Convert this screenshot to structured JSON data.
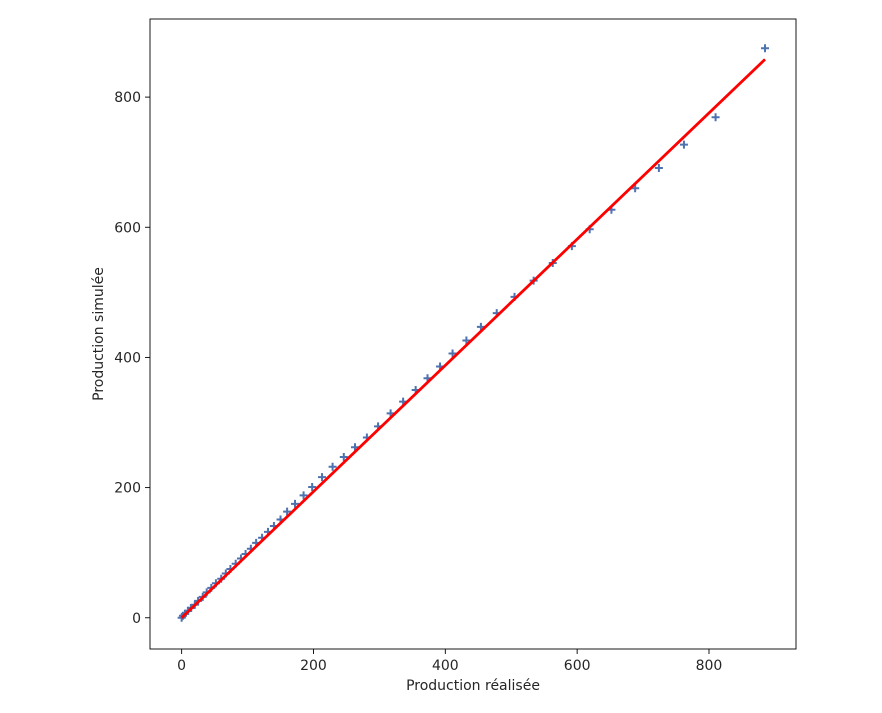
{
  "chart_data": {
    "type": "scatter",
    "title": "",
    "xlabel": "Production réalisée",
    "ylabel": "Production simulée",
    "xlim": [
      -48,
      932
    ],
    "ylim": [
      -48,
      920
    ],
    "xticks": [
      0,
      200,
      400,
      600,
      800
    ],
    "yticks": [
      0,
      200,
      400,
      600,
      800
    ],
    "grid": false,
    "legend": "none",
    "series": [
      {
        "kind": "scatter",
        "marker": "+",
        "color": "#4c72b0",
        "points": [
          [
            0,
            0
          ],
          [
            2,
            3
          ],
          [
            5,
            6
          ],
          [
            10,
            11
          ],
          [
            14,
            15
          ],
          [
            20,
            20
          ],
          [
            25,
            26
          ],
          [
            32,
            32
          ],
          [
            38,
            39
          ],
          [
            45,
            46
          ],
          [
            52,
            53
          ],
          [
            60,
            60
          ],
          [
            67,
            68
          ],
          [
            74,
            75
          ],
          [
            82,
            83
          ],
          [
            90,
            91
          ],
          [
            97,
            98
          ],
          [
            105,
            106
          ],
          [
            113,
            115
          ],
          [
            122,
            123
          ],
          [
            131,
            132
          ],
          [
            140,
            141
          ],
          [
            150,
            151
          ],
          [
            160,
            163
          ],
          [
            172,
            175
          ],
          [
            185,
            188
          ],
          [
            198,
            201
          ],
          [
            213,
            216
          ],
          [
            229,
            232
          ],
          [
            246,
            247
          ],
          [
            263,
            262
          ],
          [
            281,
            277
          ],
          [
            298,
            294
          ],
          [
            317,
            314
          ],
          [
            336,
            332
          ],
          [
            355,
            350
          ],
          [
            373,
            368
          ],
          [
            392,
            386
          ],
          [
            411,
            406
          ],
          [
            432,
            426
          ],
          [
            454,
            447
          ],
          [
            478,
            468
          ],
          [
            505,
            493
          ],
          [
            534,
            518
          ],
          [
            563,
            545
          ],
          [
            592,
            571
          ],
          [
            619,
            597
          ],
          [
            652,
            627
          ],
          [
            688,
            660
          ],
          [
            724,
            691
          ],
          [
            762,
            727
          ],
          [
            810,
            769
          ],
          [
            885,
            875
          ]
        ]
      },
      {
        "kind": "line",
        "color": "#ff0000",
        "points": [
          [
            0,
            0
          ],
          [
            885,
            858
          ]
        ]
      }
    ]
  }
}
